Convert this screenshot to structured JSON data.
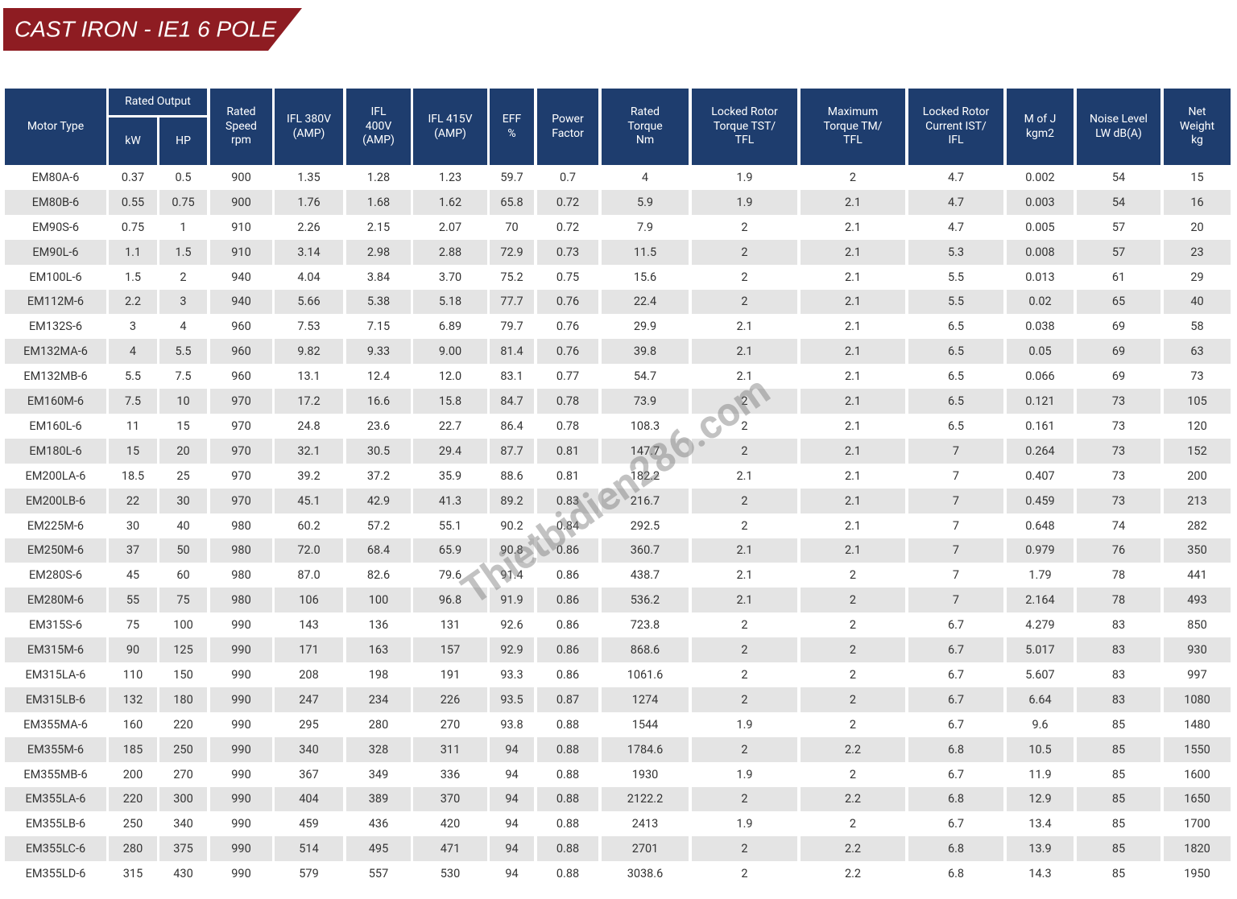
{
  "title": "CAST IRON - IE1 6 POLE",
  "watermark": "Thietbidien286.com",
  "table": {
    "group_header": "Rated Output",
    "headers": [
      "Motor Type",
      "kW",
      "HP",
      "Rated\nSpeed\nrpm",
      "IFL 380V\n(AMP)",
      "IFL\n400V\n(AMP)",
      "IFL 415V\n(AMP)",
      "EFF\n%",
      "Power\nFactor",
      "Rated\nTorque\nNm",
      "Locked Rotor\nTorque TST/\nTFL",
      "Maximum\nTorque TM/\nTFL",
      "Locked Rotor\nCurrent IST/\nIFL",
      "M of J\nkgm2",
      "Noise Level\nLW dB(A)",
      "Net\nWeight\nkg"
    ],
    "rows": [
      [
        "EM80A-6",
        "0.37",
        "0.5",
        "900",
        "1.35",
        "1.28",
        "1.23",
        "59.7",
        "0.7",
        "4",
        "1.9",
        "2",
        "4.7",
        "0.002",
        "54",
        "15"
      ],
      [
        "EM80B-6",
        "0.55",
        "0.75",
        "900",
        "1.76",
        "1.68",
        "1.62",
        "65.8",
        "0.72",
        "5.9",
        "1.9",
        "2.1",
        "4.7",
        "0.003",
        "54",
        "16"
      ],
      [
        "EM90S-6",
        "0.75",
        "1",
        "910",
        "2.26",
        "2.15",
        "2.07",
        "70",
        "0.72",
        "7.9",
        "2",
        "2.1",
        "4.7",
        "0.005",
        "57",
        "20"
      ],
      [
        "EM90L-6",
        "1.1",
        "1.5",
        "910",
        "3.14",
        "2.98",
        "2.88",
        "72.9",
        "0.73",
        "11.5",
        "2",
        "2.1",
        "5.3",
        "0.008",
        "57",
        "23"
      ],
      [
        "EM100L-6",
        "1.5",
        "2",
        "940",
        "4.04",
        "3.84",
        "3.70",
        "75.2",
        "0.75",
        "15.6",
        "2",
        "2.1",
        "5.5",
        "0.013",
        "61",
        "29"
      ],
      [
        "EM112M-6",
        "2.2",
        "3",
        "940",
        "5.66",
        "5.38",
        "5.18",
        "77.7",
        "0.76",
        "22.4",
        "2",
        "2.1",
        "5.5",
        "0.02",
        "65",
        "40"
      ],
      [
        "EM132S-6",
        "3",
        "4",
        "960",
        "7.53",
        "7.15",
        "6.89",
        "79.7",
        "0.76",
        "29.9",
        "2.1",
        "2.1",
        "6.5",
        "0.038",
        "69",
        "58"
      ],
      [
        "EM132MA-6",
        "4",
        "5.5",
        "960",
        "9.82",
        "9.33",
        "9.00",
        "81.4",
        "0.76",
        "39.8",
        "2.1",
        "2.1",
        "6.5",
        "0.05",
        "69",
        "63"
      ],
      [
        "EM132MB-6",
        "5.5",
        "7.5",
        "960",
        "13.1",
        "12.4",
        "12.0",
        "83.1",
        "0.77",
        "54.7",
        "2.1",
        "2.1",
        "6.5",
        "0.066",
        "69",
        "73"
      ],
      [
        "EM160M-6",
        "7.5",
        "10",
        "970",
        "17.2",
        "16.6",
        "15.8",
        "84.7",
        "0.78",
        "73.9",
        "2",
        "2.1",
        "6.5",
        "0.121",
        "73",
        "105"
      ],
      [
        "EM160L-6",
        "11",
        "15",
        "970",
        "24.8",
        "23.6",
        "22.7",
        "86.4",
        "0.78",
        "108.3",
        "2",
        "2.1",
        "6.5",
        "0.161",
        "73",
        "120"
      ],
      [
        "EM180L-6",
        "15",
        "20",
        "970",
        "32.1",
        "30.5",
        "29.4",
        "87.7",
        "0.81",
        "147.7",
        "2",
        "2.1",
        "7",
        "0.264",
        "73",
        "152"
      ],
      [
        "EM200LA-6",
        "18.5",
        "25",
        "970",
        "39.2",
        "37.2",
        "35.9",
        "88.6",
        "0.81",
        "182.2",
        "2.1",
        "2.1",
        "7",
        "0.407",
        "73",
        "200"
      ],
      [
        "EM200LB-6",
        "22",
        "30",
        "970",
        "45.1",
        "42.9",
        "41.3",
        "89.2",
        "0.83",
        "216.7",
        "2",
        "2.1",
        "7",
        "0.459",
        "73",
        "213"
      ],
      [
        "EM225M-6",
        "30",
        "40",
        "980",
        "60.2",
        "57.2",
        "55.1",
        "90.2",
        "0.84",
        "292.5",
        "2",
        "2.1",
        "7",
        "0.648",
        "74",
        "282"
      ],
      [
        "EM250M-6",
        "37",
        "50",
        "980",
        "72.0",
        "68.4",
        "65.9",
        "90.8",
        "0.86",
        "360.7",
        "2.1",
        "2.1",
        "7",
        "0.979",
        "76",
        "350"
      ],
      [
        "EM280S-6",
        "45",
        "60",
        "980",
        "87.0",
        "82.6",
        "79.6",
        "91.4",
        "0.86",
        "438.7",
        "2.1",
        "2",
        "7",
        "1.79",
        "78",
        "441"
      ],
      [
        "EM280M-6",
        "55",
        "75",
        "980",
        "106",
        "100",
        "96.8",
        "91.9",
        "0.86",
        "536.2",
        "2.1",
        "2",
        "7",
        "2.164",
        "78",
        "493"
      ],
      [
        "EM315S-6",
        "75",
        "100",
        "990",
        "143",
        "136",
        "131",
        "92.6",
        "0.86",
        "723.8",
        "2",
        "2",
        "6.7",
        "4.279",
        "83",
        "850"
      ],
      [
        "EM315M-6",
        "90",
        "125",
        "990",
        "171",
        "163",
        "157",
        "92.9",
        "0.86",
        "868.6",
        "2",
        "2",
        "6.7",
        "5.017",
        "83",
        "930"
      ],
      [
        "EM315LA-6",
        "110",
        "150",
        "990",
        "208",
        "198",
        "191",
        "93.3",
        "0.86",
        "1061.6",
        "2",
        "2",
        "6.7",
        "5.607",
        "83",
        "997"
      ],
      [
        "EM315LB-6",
        "132",
        "180",
        "990",
        "247",
        "234",
        "226",
        "93.5",
        "0.87",
        "1274",
        "2",
        "2",
        "6.7",
        "6.64",
        "83",
        "1080"
      ],
      [
        "EM355MA-6",
        "160",
        "220",
        "990",
        "295",
        "280",
        "270",
        "93.8",
        "0.88",
        "1544",
        "1.9",
        "2",
        "6.7",
        "9.6",
        "85",
        "1480"
      ],
      [
        "EM355M-6",
        "185",
        "250",
        "990",
        "340",
        "328",
        "311",
        "94",
        "0.88",
        "1784.6",
        "2",
        "2.2",
        "6.8",
        "10.5",
        "85",
        "1550"
      ],
      [
        "EM355MB-6",
        "200",
        "270",
        "990",
        "367",
        "349",
        "336",
        "94",
        "0.88",
        "1930",
        "1.9",
        "2",
        "6.7",
        "11.9",
        "85",
        "1600"
      ],
      [
        "EM355LA-6",
        "220",
        "300",
        "990",
        "404",
        "389",
        "370",
        "94",
        "0.88",
        "2122.2",
        "2",
        "2.2",
        "6.8",
        "12.9",
        "85",
        "1650"
      ],
      [
        "EM355LB-6",
        "250",
        "340",
        "990",
        "459",
        "436",
        "420",
        "94",
        "0.88",
        "2413",
        "1.9",
        "2",
        "6.7",
        "13.4",
        "85",
        "1700"
      ],
      [
        "EM355LC-6",
        "280",
        "375",
        "990",
        "514",
        "495",
        "471",
        "94",
        "0.88",
        "2701",
        "2",
        "2.2",
        "6.8",
        "13.9",
        "85",
        "1820"
      ],
      [
        "EM355LD-6",
        "315",
        "430",
        "990",
        "579",
        "557",
        "530",
        "94",
        "0.88",
        "3038.6",
        "2",
        "2.2",
        "6.8",
        "14.3",
        "85",
        "1950"
      ]
    ]
  }
}
